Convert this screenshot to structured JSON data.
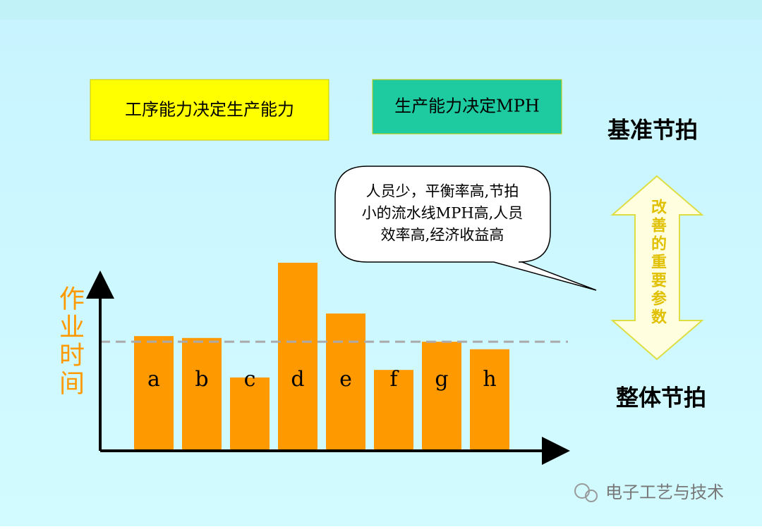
{
  "slide": {
    "box_left": "工序能力决定生产能力",
    "box_right": "生产能力决定MPH",
    "top_label": "基准节拍",
    "bottom_label": "整体节拍",
    "callout_lines": [
      "人员少，平衡率高,节拍",
      "小的流水线MPH高,人员",
      "效率高,经济收益高"
    ],
    "arrow_text": "改善的重要参数",
    "watermark": "电子工艺与技术"
  },
  "chart_data": {
    "type": "bar",
    "y_label": "作业时间",
    "categories": [
      "a",
      "b",
      "c",
      "d",
      "e",
      "f",
      "g",
      "h"
    ],
    "values": [
      61,
      60,
      39,
      100,
      73,
      43,
      58,
      54
    ],
    "color": "#ff9900",
    "reference_line": 58,
    "ylim": [
      0,
      100
    ]
  }
}
